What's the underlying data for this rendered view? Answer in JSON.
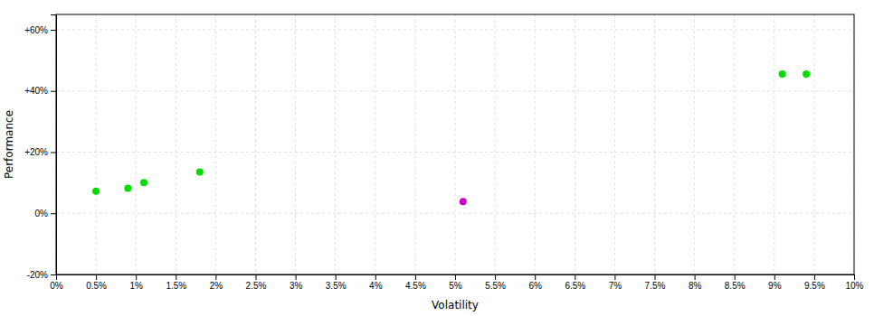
{
  "chart_data": {
    "type": "scatter",
    "xlabel": "Volatility",
    "ylabel": "Performance",
    "xlim": [
      0,
      0.1
    ],
    "ylim": [
      -0.2,
      0.65
    ],
    "xticks": [
      {
        "value": 0.0,
        "label": "0%"
      },
      {
        "value": 0.005,
        "label": "0.5%"
      },
      {
        "value": 0.01,
        "label": "1%"
      },
      {
        "value": 0.015,
        "label": "1.5%"
      },
      {
        "value": 0.02,
        "label": "2%"
      },
      {
        "value": 0.025,
        "label": "2.5%"
      },
      {
        "value": 0.03,
        "label": "3%"
      },
      {
        "value": 0.035,
        "label": "3.5%"
      },
      {
        "value": 0.04,
        "label": "4%"
      },
      {
        "value": 0.045,
        "label": "4.5%"
      },
      {
        "value": 0.05,
        "label": "5%"
      },
      {
        "value": 0.055,
        "label": "5.5%"
      },
      {
        "value": 0.06,
        "label": "6%"
      },
      {
        "value": 0.065,
        "label": "6.5%"
      },
      {
        "value": 0.07,
        "label": "7%"
      },
      {
        "value": 0.075,
        "label": "7.5%"
      },
      {
        "value": 0.08,
        "label": "8%"
      },
      {
        "value": 0.085,
        "label": "8.5%"
      },
      {
        "value": 0.09,
        "label": "9%"
      },
      {
        "value": 0.095,
        "label": "9.5%"
      },
      {
        "value": 0.1,
        "label": "10%"
      }
    ],
    "yticks": [
      {
        "value": -0.2,
        "label": "-20%"
      },
      {
        "value": 0.0,
        "label": "0%"
      },
      {
        "value": 0.2,
        "label": "+20%"
      },
      {
        "value": 0.4,
        "label": "+40%"
      },
      {
        "value": 0.6,
        "label": "+60%"
      }
    ],
    "grid": true,
    "series": [
      {
        "color": "#00dd00",
        "x": [
          0.005,
          0.009,
          0.011,
          0.018,
          0.091,
          0.094
        ],
        "values": [
          0.072,
          0.082,
          0.1,
          0.135,
          0.455,
          0.455
        ]
      },
      {
        "color": "#cc00cc",
        "x": [
          0.051
        ],
        "values": [
          0.038
        ]
      }
    ]
  }
}
